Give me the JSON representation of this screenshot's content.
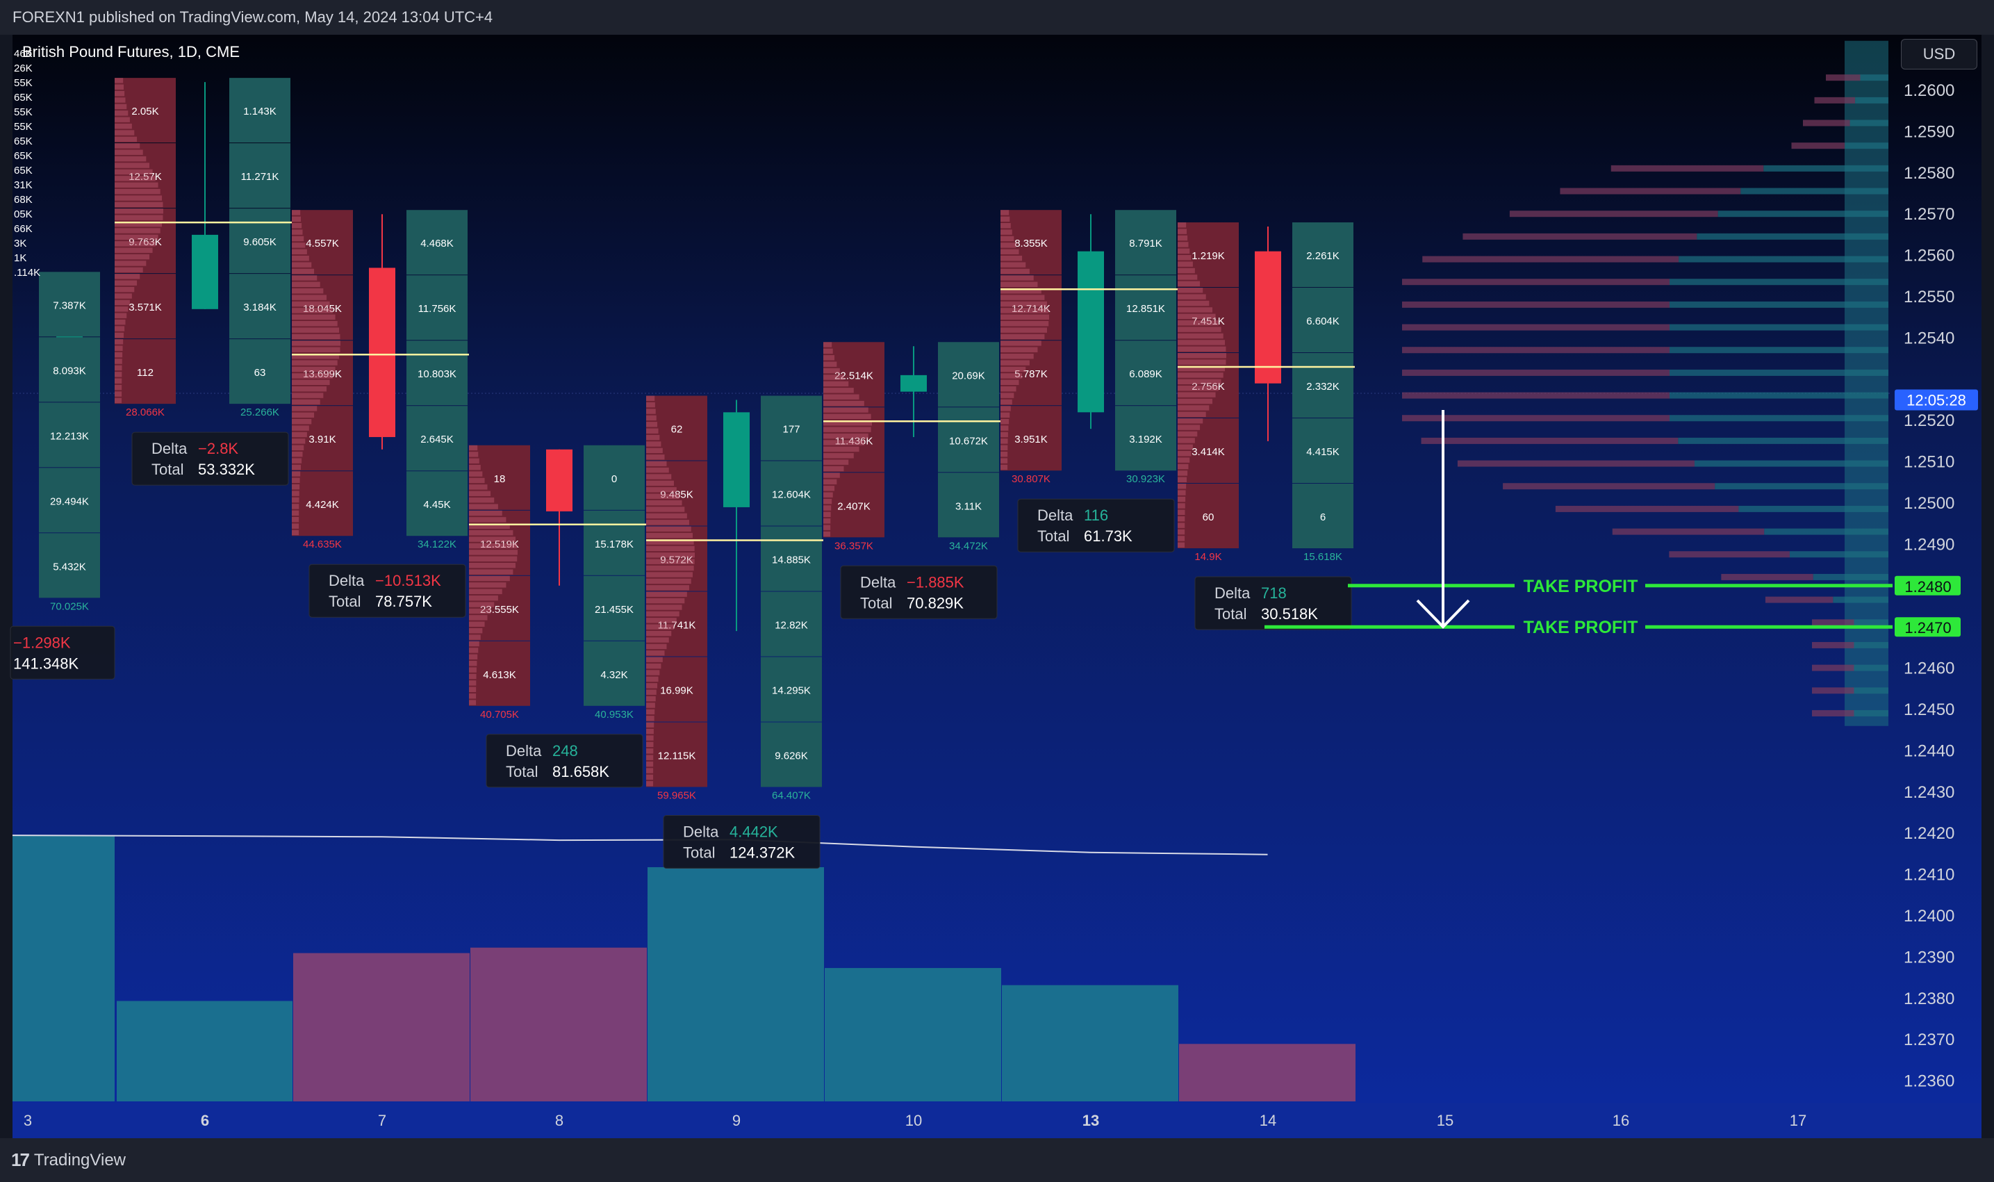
{
  "header": {
    "publish_text": "FOREXN1 published on TradingView.com, May 14, 2024 13:04 UTC+4"
  },
  "legend": {
    "symbol": "British Pound Futures, 1D, CME"
  },
  "currency_button": "USD",
  "footer": {
    "brand": "TradingView",
    "logo_glyph": "17"
  },
  "colors": {
    "up": "#089981",
    "down": "#f23645",
    "accent_green": "#2ee83a",
    "poc": "#fff3a0",
    "time_label": "#2962ff"
  },
  "chart_data": {
    "type": "candlestick",
    "ylim": [
      1.2352,
      1.2615
    ],
    "ytick_labels": [
      "1.2600",
      "1.2590",
      "1.2580",
      "1.2570",
      "1.2560",
      "1.2550",
      "1.2540",
      "1.2520",
      "1.2510",
      "1.2500",
      "1.2490",
      "1.2460",
      "1.2450",
      "1.2440",
      "1.2430",
      "1.2420",
      "1.2410",
      "1.2400",
      "1.2390",
      "1.2380",
      "1.2370",
      "1.2360"
    ],
    "x_labels": [
      "3",
      "6",
      "7",
      "8",
      "9",
      "10",
      "13",
      "14",
      "15",
      "16",
      "17"
    ],
    "x_labels_bold": [
      "6",
      "13"
    ],
    "current_price_time": "12:05:28",
    "candles": [
      {
        "date": "3",
        "open": 1.2537,
        "high": 1.2555,
        "low": 1.253,
        "close": 1.2553,
        "cells": [
          "7.387K",
          "8.093K",
          "12.213K",
          "29.494K",
          "5.432K"
        ],
        "footer": "70.025K",
        "delta": "−1.298K",
        "delta_dir": "down",
        "total": "141.348K"
      },
      {
        "date": "6",
        "open": 1.2547,
        "high": 1.2602,
        "low": 1.2547,
        "close": 1.2565,
        "cells_down": [
          "2.05K",
          "12.57K",
          "9.763K",
          "3.571K",
          "112"
        ],
        "footer_down": "28.066K",
        "cells_up": [
          "1.143K",
          "11.271K",
          "9.605K",
          "3.184K",
          "63"
        ],
        "footer_up": "25.266K",
        "delta": "−2.8K",
        "delta_dir": "down",
        "total": "53.332K"
      },
      {
        "date": "7",
        "open": 1.2557,
        "high": 1.257,
        "low": 1.2513,
        "close": 1.2516,
        "cells_down": [
          "4.557K",
          "18.045K",
          "13.699K",
          "3.91K",
          "4.424K"
        ],
        "footer_down": "44.635K",
        "cells_up": [
          "4.468K",
          "11.756K",
          "10.803K",
          "2.645K",
          "4.45K"
        ],
        "footer_up": "34.122K",
        "delta": "−10.513K",
        "delta_dir": "down",
        "total": "78.757K"
      },
      {
        "date": "8",
        "open": 1.2513,
        "high": 1.2513,
        "low": 1.248,
        "close": 1.2498,
        "cells_down": [
          "18",
          "12.519K",
          "23.555K",
          "4.613K"
        ],
        "footer_down": "40.705K",
        "cells_up": [
          "0",
          "15.178K",
          "21.455K",
          "4.32K"
        ],
        "footer_up": "40.953K",
        "delta": "248",
        "delta_dir": "up",
        "total": "81.658K"
      },
      {
        "date": "9",
        "open": 1.2499,
        "high": 1.2525,
        "low": 1.2469,
        "close": 1.2522,
        "cells_down": [
          "62",
          "9.485K",
          "9.572K",
          "11.741K",
          "16.99K",
          "12.115K"
        ],
        "footer_down": "59.965K",
        "cells_up": [
          "177",
          "12.604K",
          "14.885K",
          "12.82K",
          "14.295K",
          "9.626K"
        ],
        "footer_up": "64.407K",
        "delta": "4.442K",
        "delta_dir": "up",
        "total": "124.372K"
      },
      {
        "date": "10",
        "open": 1.2527,
        "high": 1.2538,
        "low": 1.2516,
        "close": 1.2531,
        "cells_down": [
          "22.514K",
          "11.436K",
          "2.407K"
        ],
        "footer_down": "36.357K",
        "cells_up": [
          "20.69K",
          "10.672K",
          "3.11K"
        ],
        "footer_up": "34.472K",
        "delta": "−1.885K",
        "delta_dir": "down",
        "total": "70.829K"
      },
      {
        "date": "13",
        "open": 1.2522,
        "high": 1.257,
        "low": 1.2518,
        "close": 1.2561,
        "cells_down": [
          "8.355K",
          "12.714K",
          "5.787K",
          "3.951K"
        ],
        "footer_down": "30.807K",
        "cells_up": [
          "8.791K",
          "12.851K",
          "6.089K",
          "3.192K"
        ],
        "footer_up": "30.923K",
        "delta": "116",
        "delta_dir": "up",
        "total": "61.73K"
      },
      {
        "date": "14",
        "open": 1.2561,
        "high": 1.2567,
        "low": 1.2515,
        "close": 1.2529,
        "cells_down": [
          "1.219K",
          "7.451K",
          "2.756K",
          "3.414K",
          "60"
        ],
        "footer_down": "14.9K",
        "cells_up": [
          "2.261K",
          "6.604K",
          "2.332K",
          "4.415K",
          "6"
        ],
        "footer_up": "15.618K",
        "delta": "718",
        "delta_dir": "up",
        "total": "30.518K"
      }
    ],
    "volume_bars": [
      {
        "date": "3",
        "volume": 141.348,
        "dir": "up"
      },
      {
        "date": "6",
        "volume": 53.332,
        "dir": "up"
      },
      {
        "date": "7",
        "volume": 78.757,
        "dir": "down"
      },
      {
        "date": "8",
        "volume": 81.658,
        "dir": "down"
      },
      {
        "date": "9",
        "volume": 124.372,
        "dir": "up"
      },
      {
        "date": "10",
        "volume": 70.829,
        "dir": "up"
      },
      {
        "date": "13",
        "volume": 61.73,
        "dir": "up"
      },
      {
        "date": "14",
        "volume": 30.518,
        "dir": "down"
      }
    ],
    "volume_ma": [
      141.3,
      140.9,
      140.5,
      138.7,
      139.0,
      135.2,
      132.2,
      131.1
    ],
    "left_partial_labels": [
      "46K",
      "26K",
      "55K",
      "65K",
      "55K",
      "55K",
      "65K",
      "65K",
      "65K",
      "31K",
      "68K",
      "05K",
      "66K",
      "3K",
      "1K",
      ".114K"
    ],
    "take_profit": [
      {
        "label": "TAKE PROFIT",
        "price": 1.248,
        "price_label": "1.2480"
      },
      {
        "label": "TAKE PROFIT",
        "price": 1.247,
        "price_label": "1.2470"
      }
    ],
    "current_price": 1.2525
  }
}
